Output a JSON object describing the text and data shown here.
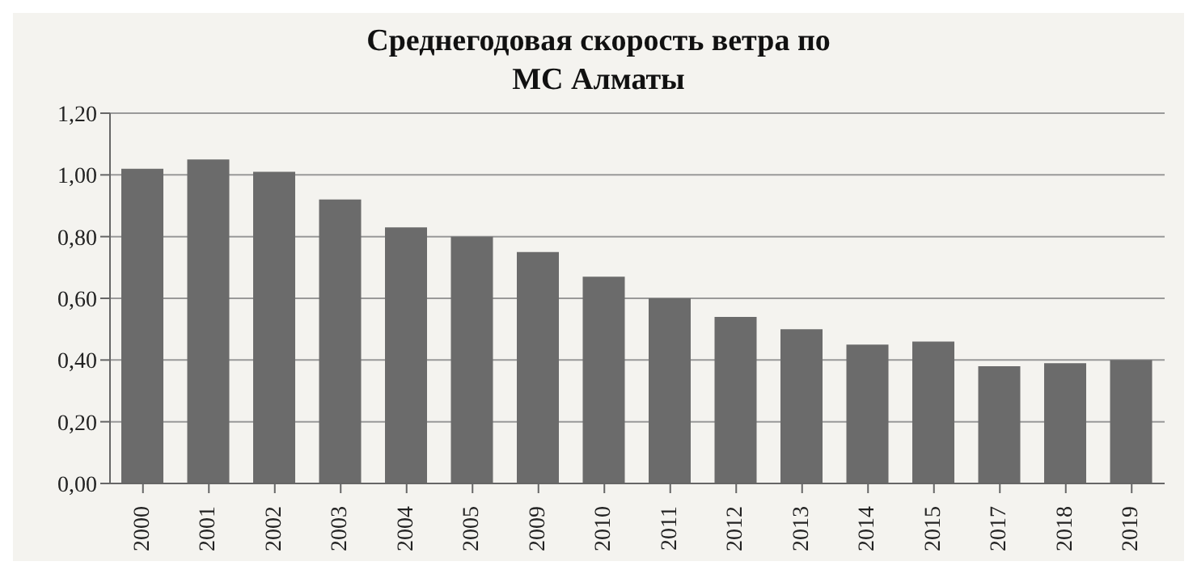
{
  "chart_data": {
    "type": "bar",
    "title": "Среднегодовая скорость ветра по МС Алматы",
    "categories": [
      "2000",
      "2001",
      "2002",
      "2003",
      "2004",
      "2005",
      "2009",
      "2010",
      "2011",
      "2012",
      "2013",
      "2014",
      "2015",
      "2017",
      "2018",
      "2019"
    ],
    "values": [
      1.02,
      1.05,
      1.01,
      0.92,
      0.83,
      0.8,
      0.75,
      0.67,
      0.6,
      0.54,
      0.5,
      0.45,
      0.46,
      0.38,
      0.39,
      0.4
    ],
    "color": "#6b6b6b",
    "ylim": [
      0,
      1.2
    ],
    "yticks": [
      {
        "value": 0,
        "label": "0,00"
      },
      {
        "value": 0.2,
        "label": "0,20"
      },
      {
        "value": 0.4,
        "label": "0,40"
      },
      {
        "value": 0.6,
        "label": "0,60"
      },
      {
        "value": 0.8,
        "label": "0,80"
      },
      {
        "value": 1,
        "label": "1,00"
      },
      {
        "value": 1.2,
        "label": "1,20"
      }
    ],
    "grid": "y"
  }
}
